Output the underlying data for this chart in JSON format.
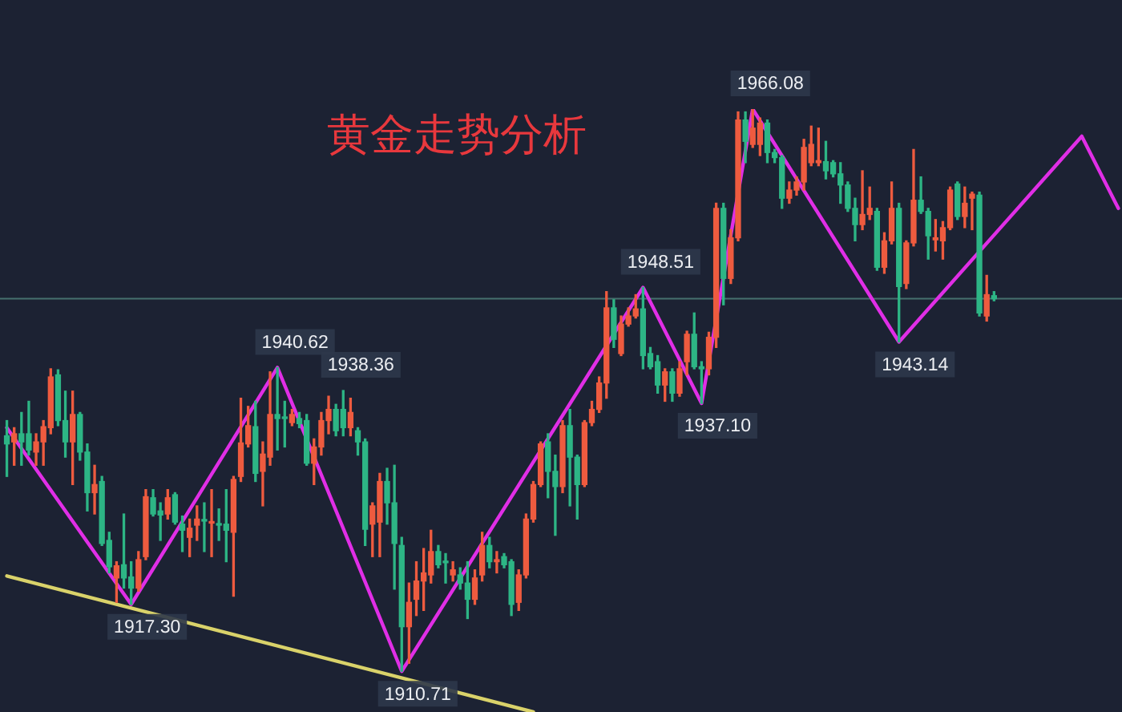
{
  "chart_data": {
    "type": "candlestick",
    "title": "黄金走势分析",
    "tick_labels": false,
    "marker": "none",
    "categories": [
      null,
      null,
      null,
      null,
      null,
      null,
      null,
      null,
      null,
      null,
      null,
      null,
      null,
      null,
      null,
      null,
      null,
      null,
      null,
      null,
      null,
      null,
      null,
      null,
      null,
      null,
      null,
      null,
      null,
      null,
      null,
      null,
      null,
      null,
      null,
      null,
      null,
      null,
      null,
      null,
      null,
      null,
      null,
      null,
      null,
      null,
      null,
      null,
      null,
      null,
      null,
      null,
      null,
      null,
      null,
      null,
      null,
      null,
      null,
      null,
      null,
      null,
      null,
      null,
      null,
      null,
      null,
      null,
      null,
      null,
      null,
      null,
      null,
      null,
      null,
      null,
      null,
      null,
      null,
      null,
      null,
      null,
      null,
      null,
      null,
      null,
      null,
      null,
      null,
      null,
      null,
      null,
      null,
      null,
      null,
      null,
      null,
      null,
      null,
      null,
      null,
      null,
      null,
      null,
      null,
      null,
      null,
      null,
      null,
      null,
      null,
      null,
      null,
      null,
      null,
      null,
      null,
      null,
      null,
      null,
      null,
      null,
      null,
      null,
      null,
      null,
      null,
      null,
      null,
      null,
      null,
      null,
      null,
      null,
      null,
      null,
      null,
      null,
      null,
      null,
      null,
      null,
      null,
      null,
      null,
      null,
      null,
      null,
      null,
      null,
      null,
      null,
      null
    ],
    "series": [
      {
        "ohlc": [
          [
            1933.9,
            1935.4,
            1929.9,
            1933.1
          ],
          [
            1933.3,
            1934.7,
            1931.0,
            1934.1
          ],
          [
            1934.1,
            1936.2,
            1931.0,
            1933.3
          ],
          [
            1934.1,
            1937.3,
            1932.0,
            1932.5
          ],
          [
            1932.3,
            1934.1,
            1931.0,
            1933.3
          ],
          [
            1933.3,
            1935.4,
            1931.0,
            1934.8
          ],
          [
            1934.7,
            1940.5,
            1934.1,
            1939.7
          ],
          [
            1939.9,
            1940.4,
            1934.9,
            1935.4
          ],
          [
            1935.4,
            1938.3,
            1931.8,
            1933.3
          ],
          [
            1933.3,
            1938.3,
            1929.1,
            1936.0
          ],
          [
            1936.0,
            1936.2,
            1931.5,
            1932.3
          ],
          [
            1932.3,
            1933.1,
            1926.5,
            1928.3
          ],
          [
            1928.3,
            1931.0,
            1926.2,
            1929.1
          ],
          [
            1929.4,
            1929.9,
            1923.1,
            1923.3
          ],
          [
            1923.6,
            1924.4,
            1920.4,
            1921.0
          ],
          [
            1919.9,
            1921.5,
            1917.5,
            1921.1
          ],
          [
            1921.2,
            1926.2,
            1918.9,
            1919.9
          ],
          [
            1920.0,
            1921.5,
            1917.3,
            1918.9
          ],
          [
            1918.9,
            1922.5,
            1918.6,
            1921.7
          ],
          [
            1922.0,
            1928.6,
            1921.7,
            1927.9
          ],
          [
            1927.8,
            1928.6,
            1926.0,
            1926.2
          ],
          [
            1926.5,
            1927.3,
            1923.6,
            1926.1
          ],
          [
            1926.2,
            1928.6,
            1925.7,
            1927.8
          ],
          [
            1928.1,
            1928.3,
            1925.2,
            1925.4
          ],
          [
            1925.2,
            1926.0,
            1922.5,
            1924.6
          ],
          [
            1923.9,
            1925.7,
            1922.0,
            1924.8
          ],
          [
            1925.1,
            1927.0,
            1923.6,
            1925.7
          ],
          [
            1925.6,
            1927.3,
            1922.5,
            1925.5
          ],
          [
            1925.3,
            1928.6,
            1922.0,
            1925.4
          ],
          [
            1925.2,
            1926.7,
            1923.6,
            1925.1
          ],
          [
            1925.2,
            1928.6,
            1921.5,
            1924.6
          ],
          [
            1924.4,
            1929.9,
            1918.1,
            1929.6
          ],
          [
            1929.9,
            1937.6,
            1929.4,
            1933.2
          ],
          [
            1933.1,
            1936.8,
            1932.8,
            1934.9
          ],
          [
            1934.8,
            1937.3,
            1929.4,
            1930.2
          ],
          [
            1930.4,
            1933.3,
            1927.0,
            1932.1
          ],
          [
            1931.8,
            1940.2,
            1931.0,
            1936.0
          ],
          [
            1936.0,
            1940.62,
            1932.5,
            1935.6
          ],
          [
            1935.7,
            1937.3,
            1932.8,
            1935.6
          ],
          [
            1935.2,
            1936.5,
            1934.9,
            1936.0
          ],
          [
            1935.6,
            1936.2,
            1934.7,
            1935.1
          ],
          [
            1935.4,
            1936.0,
            1931.0,
            1931.2
          ],
          [
            1931.2,
            1933.6,
            1929.1,
            1932.8
          ],
          [
            1932.8,
            1936.2,
            1932.0,
            1935.4
          ],
          [
            1935.4,
            1937.8,
            1934.1,
            1936.5
          ],
          [
            1936.5,
            1937.0,
            1933.9,
            1934.4
          ],
          [
            1936.5,
            1938.36,
            1933.9,
            1934.7
          ],
          [
            1934.7,
            1937.6,
            1933.9,
            1936.2
          ],
          [
            1934.4,
            1934.7,
            1932.0,
            1933.3
          ],
          [
            1933.3,
            1933.6,
            1923.1,
            1924.7
          ],
          [
            1925.2,
            1927.3,
            1922.0,
            1927.0
          ],
          [
            1925.4,
            1930.2,
            1922.0,
            1929.4
          ],
          [
            1929.4,
            1930.7,
            1925.2,
            1927.3
          ],
          [
            1927.3,
            1931.0,
            1918.8,
            1923.3
          ],
          [
            1923.1,
            1923.9,
            1910.71,
            1915.1
          ],
          [
            1915.1,
            1919.4,
            1911.5,
            1917.5
          ],
          [
            1917.8,
            1921.5,
            1916.2,
            1919.6
          ],
          [
            1919.6,
            1922.8,
            1916.7,
            1920.4
          ],
          [
            1920.2,
            1924.6,
            1919.4,
            1922.5
          ],
          [
            1922.5,
            1923.1,
            1920.9,
            1921.2
          ],
          [
            1921.5,
            1922.3,
            1919.4,
            1921.4
          ],
          [
            1920.2,
            1921.5,
            1919.6,
            1920.7
          ],
          [
            1920.2,
            1920.9,
            1918.8,
            1919.4
          ],
          [
            1919.4,
            1921.5,
            1915.9,
            1917.8
          ],
          [
            1917.8,
            1920.7,
            1917.3,
            1919.9
          ],
          [
            1920.2,
            1924.4,
            1919.6,
            1923.1
          ],
          [
            1923.1,
            1923.9,
            1920.9,
            1921.5
          ],
          [
            1921.5,
            1922.5,
            1920.4,
            1921.7
          ],
          [
            1922.0,
            1922.3,
            1920.9,
            1921.2
          ],
          [
            1921.5,
            1921.7,
            1916.2,
            1917.3
          ],
          [
            1917.5,
            1920.7,
            1916.7,
            1920.2
          ],
          [
            1920.2,
            1926.2,
            1919.9,
            1925.7
          ],
          [
            1925.7,
            1929.4,
            1925.4,
            1929.1
          ],
          [
            1929.1,
            1933.3,
            1928.9,
            1933.1
          ],
          [
            1933.3,
            1934.1,
            1927.8,
            1930.4
          ],
          [
            1930.4,
            1932.0,
            1924.1,
            1928.9
          ],
          [
            1928.9,
            1935.4,
            1928.3,
            1934.9
          ],
          [
            1934.9,
            1936.5,
            1927.0,
            1931.8
          ],
          [
            1931.8,
            1932.0,
            1925.7,
            1929.1
          ],
          [
            1929.1,
            1935.4,
            1928.9,
            1935.2
          ],
          [
            1935.2,
            1937.3,
            1934.9,
            1936.5
          ],
          [
            1936.5,
            1939.7,
            1936.2,
            1939.1
          ],
          [
            1939.1,
            1948.1,
            1937.6,
            1946.5
          ],
          [
            1946.5,
            1947.3,
            1942.6,
            1943.4
          ],
          [
            1942.0,
            1945.7,
            1941.8,
            1944.9
          ],
          [
            1944.9,
            1946.5,
            1944.7,
            1945.7
          ],
          [
            1945.7,
            1947.8,
            1945.5,
            1946.4
          ],
          [
            1946.4,
            1948.51,
            1940.5,
            1941.8
          ],
          [
            1942.0,
            1942.6,
            1940.5,
            1940.7
          ],
          [
            1941.2,
            1941.8,
            1938.1,
            1938.9
          ],
          [
            1938.9,
            1940.5,
            1937.3,
            1940.2
          ],
          [
            1940.2,
            1940.5,
            1937.3,
            1938.1
          ],
          [
            1938.1,
            1941.2,
            1937.8,
            1940.5
          ],
          [
            1941.2,
            1944.2,
            1939.9,
            1943.9
          ],
          [
            1943.9,
            1946.0,
            1940.5,
            1940.7
          ],
          [
            1940.7,
            1941.2,
            1937.1,
            1940.5
          ],
          [
            1940.5,
            1944.1,
            1939.9,
            1943.6
          ],
          [
            1943.6,
            1956.8,
            1942.6,
            1956.3
          ],
          [
            1956.3,
            1956.8,
            1946.8,
            1949.4
          ],
          [
            1949.4,
            1954.2,
            1948.9,
            1953.4
          ],
          [
            1953.4,
            1965.8,
            1953.1,
            1965.0
          ],
          [
            1965.0,
            1965.8,
            1960.8,
            1962.9
          ],
          [
            1962.6,
            1966.08,
            1962.3,
            1964.2
          ],
          [
            1962.6,
            1965.2,
            1961.5,
            1964.7
          ],
          [
            1964.7,
            1965.0,
            1960.8,
            1961.8
          ],
          [
            1961.8,
            1962.1,
            1960.8,
            1961.3
          ],
          [
            1961.3,
            1961.5,
            1956.3,
            1957.3
          ],
          [
            1957.3,
            1958.9,
            1956.8,
            1958.1
          ],
          [
            1958.1,
            1959.4,
            1957.6,
            1958.9
          ],
          [
            1958.9,
            1963.1,
            1958.1,
            1962.3
          ],
          [
            1960.8,
            1964.4,
            1960.5,
            1962.6
          ],
          [
            1960.8,
            1964.2,
            1960.5,
            1961.0
          ],
          [
            1960.9,
            1962.9,
            1959.2,
            1960.0
          ],
          [
            1960.8,
            1961.0,
            1959.4,
            1959.7
          ],
          [
            1959.7,
            1960.8,
            1956.8,
            1958.6
          ],
          [
            1958.6,
            1958.9,
            1956.0,
            1956.3
          ],
          [
            1956.3,
            1957.3,
            1953.1,
            1954.7
          ],
          [
            1954.7,
            1960.0,
            1954.2,
            1955.7
          ],
          [
            1955.7,
            1958.4,
            1955.2,
            1956.3
          ],
          [
            1956.0,
            1956.3,
            1950.2,
            1950.5
          ],
          [
            1950.5,
            1953.9,
            1949.9,
            1953.1
          ],
          [
            1953.1,
            1958.9,
            1952.8,
            1956.3
          ],
          [
            1956.3,
            1956.8,
            1943.14,
            1948.6
          ],
          [
            1948.9,
            1953.1,
            1948.4,
            1952.9
          ],
          [
            1952.9,
            1962.1,
            1952.6,
            1957.1
          ],
          [
            1957.1,
            1959.4,
            1955.8,
            1956.0
          ],
          [
            1956.0,
            1956.3,
            1951.3,
            1953.6
          ],
          [
            1953.2,
            1955.2,
            1952.1,
            1953.4
          ],
          [
            1953.1,
            1955.0,
            1951.3,
            1954.4
          ],
          [
            1954.4,
            1958.4,
            1954.2,
            1958.1
          ],
          [
            1958.7,
            1958.9,
            1955.2,
            1955.5
          ],
          [
            1955.5,
            1958.4,
            1954.4,
            1956.8
          ],
          [
            1957.3,
            1957.9,
            1954.2,
            1957.7
          ],
          [
            1957.6,
            1957.9,
            1945.7,
            1946.0
          ],
          [
            1945.7,
            1949.7,
            1945.2,
            1947.8
          ],
          [
            1947.7,
            1948.1,
            1947.2,
            1947.4
          ],
          null,
          null,
          null,
          null,
          null,
          null,
          null,
          null,
          null,
          null,
          null,
          null,
          null,
          null,
          null,
          null,
          null
        ],
        "colors": [
          "#2db585",
          "#ee5b3f",
          "#2db585",
          "#2db585",
          "#ee5b3f",
          "#ee5b3f",
          "#ee5b3f",
          "#2db585",
          "#2db585",
          "#ee5b3f",
          "#2db585",
          "#2db585",
          "#ee5b3f",
          "#2db585",
          "#2db585",
          "#ee5b3f",
          "#2db585",
          "#2db585",
          "#ee5b3f",
          "#ee5b3f",
          "#2db585",
          "#2db585",
          "#ee5b3f",
          "#2db585",
          "#2db585",
          "#ee5b3f",
          "#ee5b3f",
          "#2db585",
          "#ee5b3f",
          "#2db585",
          "#2db585",
          "#ee5b3f",
          "#ee5b3f",
          "#ee5b3f",
          "#2db585",
          "#ee5b3f",
          "#ee5b3f",
          "#2db585",
          "#2db585",
          "#ee5b3f",
          "#2db585",
          "#2db585",
          "#ee5b3f",
          "#ee5b3f",
          "#ee5b3f",
          "#2db585",
          "#2db585",
          "#ee5b3f",
          "#2db585",
          "#2db585",
          "#ee5b3f",
          "#ee5b3f",
          "#2db585",
          "#2db585",
          "#2db585",
          "#ee5b3f",
          "#ee5b3f",
          "#ee5b3f",
          "#ee5b3f",
          "#2db585",
          "#2db585",
          "#ee5b3f",
          "#2db585",
          "#2db585",
          "#ee5b3f",
          "#ee5b3f",
          "#2db585",
          "#ee5b3f",
          "#2db585",
          "#2db585",
          "#ee5b3f",
          "#ee5b3f",
          "#ee5b3f",
          "#ee5b3f",
          "#2db585",
          "#2db585",
          "#ee5b3f",
          "#2db585",
          "#2db585",
          "#ee5b3f",
          "#ee5b3f",
          "#ee5b3f",
          "#ee5b3f",
          "#2db585",
          "#ee5b3f",
          "#ee5b3f",
          "#ee5b3f",
          "#2db585",
          "#2db585",
          "#2db585",
          "#ee5b3f",
          "#2db585",
          "#ee5b3f",
          "#ee5b3f",
          "#2db585",
          "#2db585",
          "#ee5b3f",
          "#ee5b3f",
          "#2db585",
          "#ee5b3f",
          "#ee5b3f",
          "#2db585",
          "#ee5b3f",
          "#ee5b3f",
          "#2db585",
          "#2db585",
          "#2db585",
          "#ee5b3f",
          "#ee5b3f",
          "#ee5b3f",
          "#ee5b3f",
          "#ee5b3f",
          "#2db585",
          "#2db585",
          "#2db585",
          "#2db585",
          "#2db585",
          "#ee5b3f",
          "#ee5b3f",
          "#2db585",
          "#ee5b3f",
          "#ee5b3f",
          "#2db585",
          "#ee5b3f",
          "#ee5b3f",
          "#2db585",
          "#2db585",
          "#ee5b3f",
          "#ee5b3f",
          "#ee5b3f",
          "#2db585",
          "#ee5b3f",
          "#ee5b3f",
          "#2db585",
          "#ee5b3f",
          "#2db585",
          null,
          null,
          null,
          null,
          null,
          null,
          null,
          null,
          null,
          null,
          null,
          null,
          null,
          null,
          null,
          null,
          null
        ],
        "value_labels": [
          null,
          null,
          null,
          null,
          null,
          null,
          null,
          null,
          null,
          null,
          null,
          null,
          null,
          null,
          null,
          null,
          null,
          "1917.30",
          null,
          null,
          null,
          null,
          null,
          null,
          null,
          null,
          null,
          null,
          null,
          null,
          null,
          null,
          null,
          null,
          null,
          null,
          null,
          "1940.62",
          null,
          null,
          null,
          null,
          null,
          null,
          null,
          null,
          "1938.36",
          null,
          null,
          null,
          null,
          null,
          null,
          null,
          "1910.71",
          null,
          null,
          null,
          null,
          null,
          null,
          null,
          null,
          null,
          null,
          null,
          null,
          null,
          null,
          null,
          null,
          null,
          null,
          null,
          null,
          null,
          null,
          null,
          null,
          null,
          null,
          null,
          null,
          null,
          null,
          null,
          null,
          "1948.51",
          null,
          null,
          null,
          null,
          null,
          null,
          null,
          "1937.10",
          null,
          null,
          null,
          null,
          null,
          null,
          "1966.08",
          null,
          null,
          null,
          null,
          null,
          null,
          null,
          null,
          null,
          null,
          null,
          null,
          null,
          null,
          null,
          null,
          null,
          null,
          null,
          "1943.14",
          null,
          null,
          null,
          null,
          null,
          null,
          null,
          null,
          null,
          null,
          null,
          null,
          null,
          null,
          null,
          null,
          null,
          null,
          null,
          null,
          null,
          null,
          null,
          null,
          null,
          null,
          null,
          null,
          null,
          null
        ]
      },
      {
        "type": "line",
        "color": "#e02ee6",
        "values": [
          1934.7,
          null,
          null,
          null,
          null,
          null,
          null,
          null,
          null,
          null,
          null,
          null,
          null,
          null,
          null,
          null,
          null,
          1917.3,
          null,
          null,
          null,
          null,
          null,
          null,
          null,
          null,
          null,
          null,
          null,
          null,
          null,
          null,
          null,
          null,
          null,
          null,
          null,
          1940.62,
          null,
          null,
          null,
          null,
          null,
          null,
          null,
          null,
          null,
          null,
          null,
          null,
          null,
          null,
          null,
          null,
          1910.71,
          null,
          null,
          null,
          null,
          null,
          null,
          null,
          null,
          null,
          null,
          null,
          null,
          null,
          null,
          null,
          null,
          null,
          null,
          null,
          null,
          null,
          null,
          null,
          null,
          null,
          null,
          null,
          null,
          null,
          null,
          null,
          null,
          1948.51,
          null,
          null,
          null,
          null,
          null,
          null,
          null,
          1937.1,
          null,
          null,
          null,
          null,
          null,
          null,
          1966.08,
          null,
          null,
          null,
          null,
          null,
          null,
          null,
          null,
          null,
          null,
          null,
          null,
          null,
          null,
          null,
          null,
          null,
          null,
          null,
          1943.14,
          null,
          null,
          null,
          null,
          null,
          null,
          null,
          null,
          null,
          null,
          null,
          null,
          null,
          null,
          null,
          null,
          null,
          null,
          null,
          null,
          null,
          null,
          null,
          null,
          1963.4,
          null,
          null,
          null,
          null,
          1956.3
        ]
      },
      {
        "type": "line",
        "color": "#d9d26a",
        "values": [
          1920.1,
          null,
          null,
          null,
          null,
          null,
          null,
          null,
          null,
          null,
          null,
          null,
          null,
          null,
          null,
          null,
          null,
          null,
          null,
          null,
          null,
          null,
          null,
          null,
          null,
          null,
          null,
          null,
          null,
          null,
          null,
          null,
          null,
          null,
          null,
          null,
          null,
          null,
          null,
          null,
          null,
          null,
          null,
          null,
          null,
          null,
          null,
          null,
          null,
          null,
          null,
          null,
          null,
          null,
          null,
          null,
          null,
          null,
          null,
          null,
          null,
          null,
          null,
          null,
          null,
          null,
          null,
          null,
          null,
          null,
          null,
          null,
          1906.7,
          null,
          null,
          null,
          null,
          null,
          null,
          null,
          null,
          null,
          null,
          null,
          null,
          null,
          null,
          null,
          null,
          null,
          null,
          null,
          null,
          null,
          null,
          null,
          null,
          null,
          null,
          null,
          null,
          null,
          null,
          null,
          null,
          null,
          null,
          null,
          null,
          null,
          null,
          null,
          null,
          null,
          null,
          null,
          null,
          null,
          null,
          null,
          null,
          null,
          null,
          null,
          null,
          null,
          null,
          null,
          null,
          null,
          null,
          null,
          null,
          null,
          null,
          null,
          null,
          null,
          null,
          null,
          null,
          null,
          null,
          null,
          null,
          null,
          null,
          null,
          null,
          null,
          null,
          null,
          null
        ]
      }
    ],
    "ref_lines": [
      {
        "axis": "y",
        "value": 1947.4,
        "color": "#46706e"
      }
    ]
  }
}
